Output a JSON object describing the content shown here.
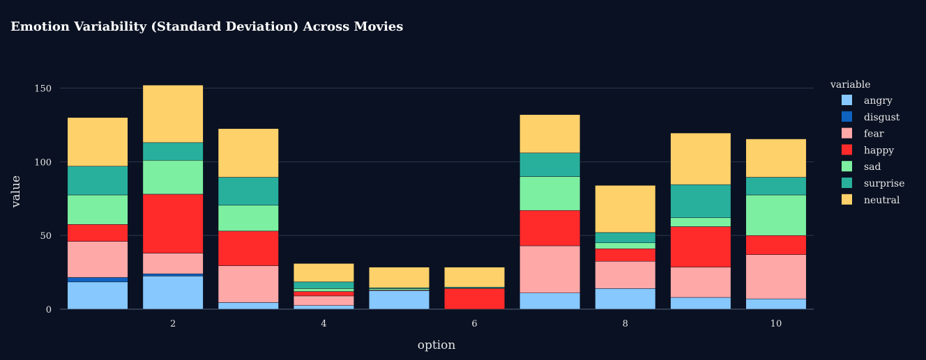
{
  "chart_data": {
    "type": "bar",
    "stacked": true,
    "title": "Emotion Variability (Standard Deviation) Across Movies",
    "xlabel": "option",
    "ylabel": "value",
    "legend_title": "variable",
    "legend_position": "right",
    "grid": true,
    "categories": [
      1,
      2,
      3,
      4,
      5,
      6,
      7,
      8,
      9,
      10
    ],
    "x_ticks": [
      2,
      4,
      6,
      8,
      10
    ],
    "ylim": [
      0,
      160
    ],
    "y_ticks": [
      0,
      50,
      100,
      150
    ],
    "series": [
      {
        "name": "angry",
        "color": "#87c8ff",
        "values": [
          18.5,
          22.5,
          4.5,
          2.5,
          12.5,
          0.0,
          11.0,
          14.0,
          8.0,
          7.0
        ]
      },
      {
        "name": "disgust",
        "color": "#0f62c0",
        "values": [
          3.0,
          1.5,
          0.0,
          0.0,
          0.0,
          0.0,
          0.0,
          0.0,
          0.0,
          0.0
        ]
      },
      {
        "name": "fear",
        "color": "#ffa8a8",
        "values": [
          24.5,
          14.0,
          25.0,
          6.5,
          0.5,
          0.0,
          32.0,
          18.5,
          20.5,
          30.0
        ]
      },
      {
        "name": "happy",
        "color": "#ff2b2b",
        "values": [
          11.5,
          40.0,
          23.5,
          3.0,
          0.0,
          14.0,
          24.0,
          8.5,
          27.5,
          13.0
        ]
      },
      {
        "name": "sad",
        "color": "#7defa1",
        "values": [
          20.0,
          23.0,
          17.5,
          2.0,
          1.0,
          0.5,
          23.0,
          4.0,
          6.0,
          27.5
        ]
      },
      {
        "name": "surprise",
        "color": "#29b09d",
        "values": [
          19.5,
          12.0,
          19.0,
          4.5,
          0.5,
          0.5,
          16.0,
          7.0,
          22.5,
          12.0
        ]
      },
      {
        "name": "neutral",
        "color": "#ffd16a",
        "values": [
          33.0,
          39.0,
          33.0,
          12.5,
          14.0,
          13.5,
          26.0,
          32.0,
          35.0,
          26.0
        ]
      }
    ]
  }
}
